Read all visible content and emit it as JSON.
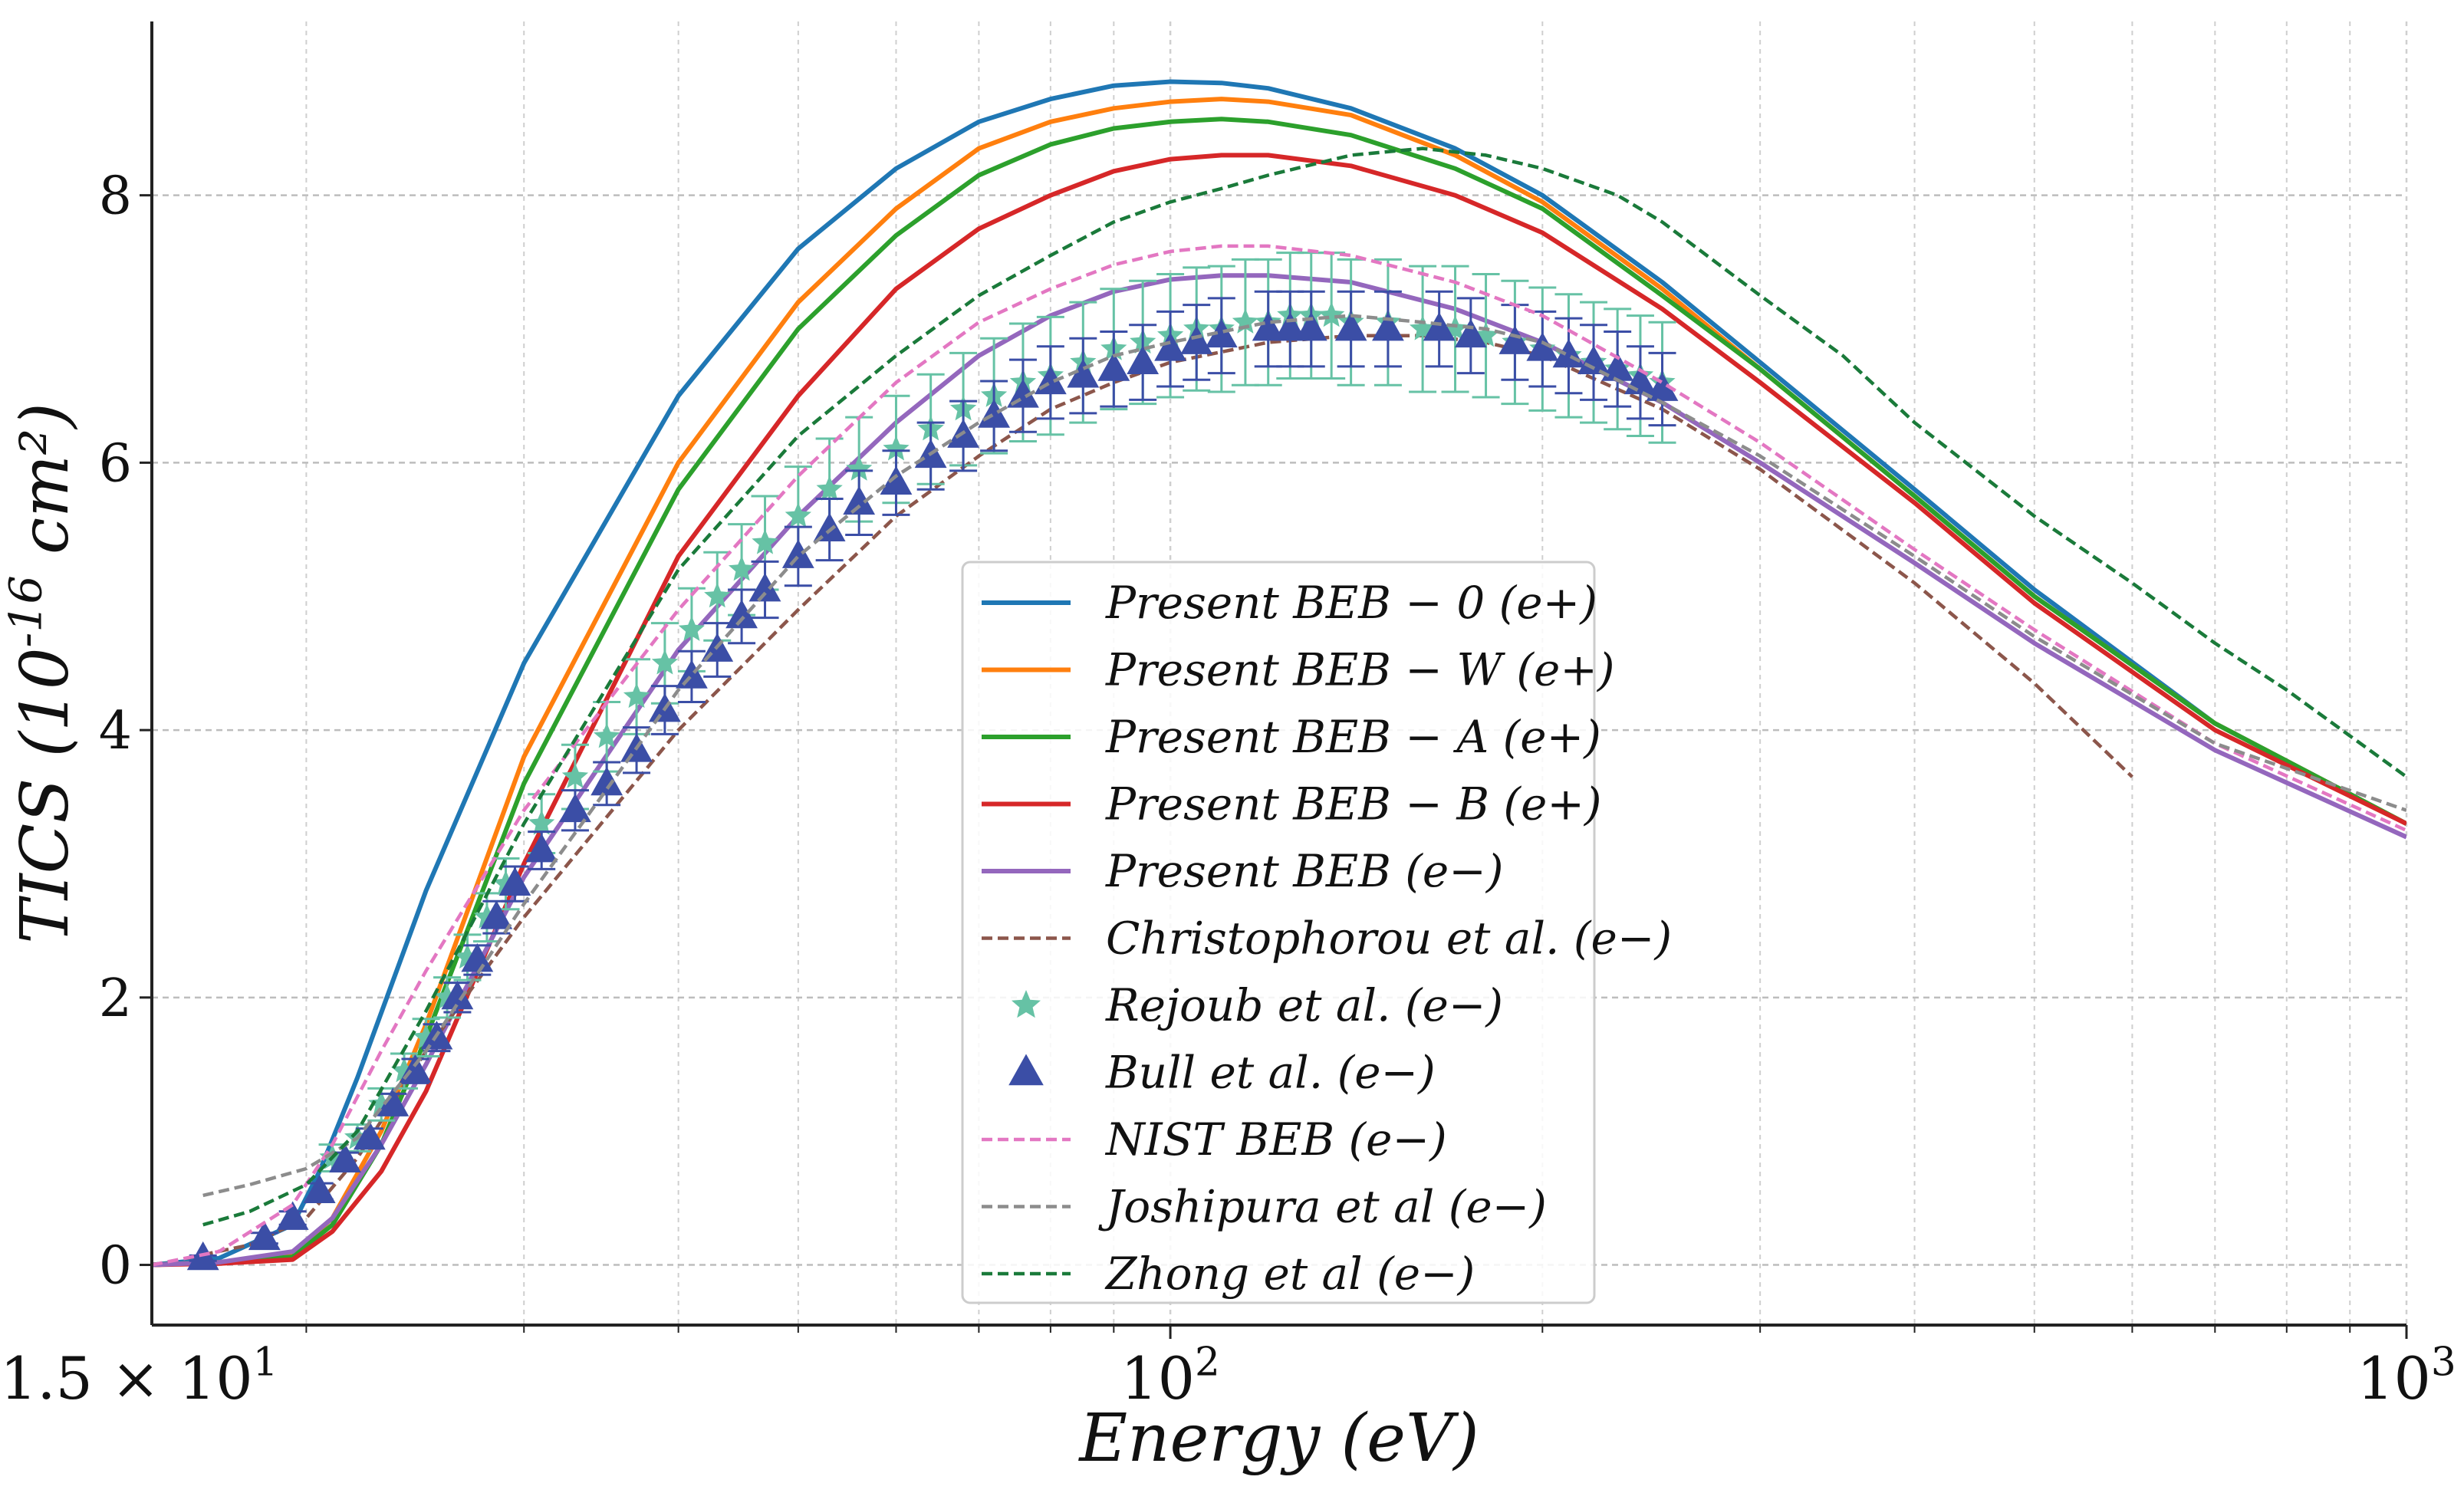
{
  "chart_data": {
    "type": "line",
    "title": "",
    "xlabel": "Energy (eV)",
    "ylabel": "TICS (10^-16 cm^2)",
    "xscale": "log",
    "xlim": [
      15,
      1000
    ],
    "ylim": [
      -0.45,
      9.3
    ],
    "grid": true,
    "legend_position": "center",
    "x_ticks": [
      {
        "value": 15,
        "label": "1.5 × 10^1"
      },
      {
        "value": 100,
        "label": "10^2"
      },
      {
        "value": 1000,
        "label": "10^3"
      }
    ],
    "y_ticks": [
      {
        "value": 0,
        "label": "0"
      },
      {
        "value": 2,
        "label": "2"
      },
      {
        "value": 4,
        "label": "4"
      },
      {
        "value": 6,
        "label": "6"
      },
      {
        "value": 8,
        "label": "8"
      }
    ],
    "series": [
      {
        "name": "Present BEB − 0 (e+)",
        "style": "solid",
        "marker": "none",
        "color": "#1f77b4",
        "x": [
          15,
          17,
          19.5,
          20.5,
          22,
          25,
          30,
          40,
          50,
          60,
          70,
          80,
          90,
          100,
          110,
          120,
          140,
          170,
          200,
          250,
          300,
          400,
          500,
          700,
          1000
        ],
        "y": [
          0,
          0.05,
          0.3,
          0.7,
          1.4,
          2.8,
          4.5,
          6.5,
          7.6,
          8.2,
          8.55,
          8.72,
          8.82,
          8.85,
          8.84,
          8.8,
          8.65,
          8.35,
          8.0,
          7.35,
          6.75,
          5.8,
          5.05,
          4.05,
          3.3
        ]
      },
      {
        "name": "Present BEB − W (e+)",
        "style": "solid",
        "marker": "none",
        "color": "#ff7f0e",
        "x": [
          15,
          17,
          19.5,
          21,
          23,
          25,
          30,
          40,
          50,
          60,
          70,
          80,
          90,
          100,
          110,
          120,
          140,
          170,
          200,
          250,
          300,
          400,
          500,
          700,
          1000
        ],
        "y": [
          0,
          0.02,
          0.08,
          0.35,
          1.0,
          1.8,
          3.8,
          6.0,
          7.2,
          7.9,
          8.35,
          8.55,
          8.65,
          8.7,
          8.72,
          8.7,
          8.6,
          8.3,
          7.95,
          7.3,
          6.7,
          5.75,
          5.0,
          4.05,
          3.3
        ]
      },
      {
        "name": "Present BEB − A (e+)",
        "style": "solid",
        "marker": "none",
        "color": "#2ca02c",
        "x": [
          15,
          17,
          19.5,
          21,
          23,
          25,
          30,
          40,
          50,
          60,
          70,
          80,
          90,
          100,
          110,
          120,
          140,
          170,
          200,
          250,
          300,
          400,
          500,
          700,
          1000
        ],
        "y": [
          0,
          0.02,
          0.06,
          0.3,
          0.9,
          1.7,
          3.6,
          5.8,
          7.0,
          7.7,
          8.15,
          8.38,
          8.5,
          8.55,
          8.57,
          8.55,
          8.45,
          8.2,
          7.9,
          7.25,
          6.7,
          5.75,
          5.0,
          4.05,
          3.3
        ]
      },
      {
        "name": "Present BEB − B (e+)",
        "style": "solid",
        "marker": "none",
        "color": "#d62728",
        "x": [
          15,
          17,
          19.5,
          21,
          23,
          25,
          30,
          40,
          50,
          60,
          70,
          80,
          90,
          100,
          110,
          120,
          140,
          170,
          200,
          250,
          300,
          400,
          500,
          700,
          1000
        ],
        "y": [
          0,
          0.01,
          0.04,
          0.25,
          0.7,
          1.3,
          3.0,
          5.3,
          6.5,
          7.3,
          7.75,
          8.0,
          8.18,
          8.27,
          8.3,
          8.3,
          8.22,
          8.0,
          7.72,
          7.15,
          6.6,
          5.7,
          4.95,
          4.0,
          3.3
        ]
      },
      {
        "name": "Present BEB (e−)",
        "style": "solid",
        "marker": "none",
        "color": "#9467bd",
        "x": [
          15,
          17,
          19.5,
          21,
          23,
          25,
          30,
          40,
          50,
          60,
          70,
          80,
          90,
          100,
          110,
          120,
          140,
          170,
          200,
          250,
          300,
          400,
          500,
          700,
          1000
        ],
        "y": [
          0,
          0.02,
          0.1,
          0.35,
          0.9,
          1.5,
          2.9,
          4.6,
          5.6,
          6.3,
          6.8,
          7.1,
          7.28,
          7.37,
          7.4,
          7.4,
          7.35,
          7.15,
          6.9,
          6.45,
          6.0,
          5.25,
          4.65,
          3.85,
          3.2
        ]
      },
      {
        "name": "Christophorou et al. (e−)",
        "style": "dashed",
        "marker": "none",
        "color": "#8c564b",
        "x": [
          16,
          18,
          20,
          22,
          25,
          30,
          40,
          50,
          60,
          70,
          80,
          90,
          100,
          120,
          140,
          160,
          180,
          200,
          250,
          300,
          400,
          500,
          600
        ],
        "y": [
          0.05,
          0.15,
          0.35,
          0.8,
          1.6,
          2.6,
          4.0,
          4.9,
          5.6,
          6.05,
          6.4,
          6.6,
          6.75,
          6.9,
          6.95,
          6.95,
          6.9,
          6.8,
          6.4,
          5.95,
          5.1,
          4.35,
          3.65
        ]
      },
      {
        "name": "Rejoub et al. (e−)",
        "style": "errorbar",
        "marker": "star",
        "color": "#66c2a5",
        "x": [
          21,
          22,
          23,
          24,
          25,
          26,
          27,
          28,
          29,
          31,
          33,
          35,
          37,
          39,
          41,
          43,
          45,
          47,
          50,
          53,
          56,
          60,
          64,
          68,
          72,
          76,
          80,
          85,
          90,
          95,
          100,
          105,
          110,
          115,
          120,
          125,
          130,
          135,
          140,
          150,
          160,
          170,
          180,
          190,
          200,
          210,
          220,
          230,
          240,
          250
        ],
        "y": [
          0.8,
          0.95,
          1.2,
          1.45,
          1.7,
          2.0,
          2.3,
          2.6,
          2.85,
          3.3,
          3.65,
          3.95,
          4.25,
          4.5,
          4.75,
          5.0,
          5.2,
          5.4,
          5.6,
          5.8,
          5.95,
          6.1,
          6.25,
          6.4,
          6.5,
          6.6,
          6.65,
          6.75,
          6.85,
          6.9,
          6.95,
          7.0,
          7.0,
          7.05,
          7.05,
          7.1,
          7.1,
          7.1,
          7.05,
          7.05,
          7.0,
          7.0,
          6.95,
          6.9,
          6.85,
          6.8,
          6.75,
          6.7,
          6.65,
          6.6
        ],
        "yerr": [
          0.1,
          0.1,
          0.12,
          0.13,
          0.14,
          0.15,
          0.17,
          0.18,
          0.19,
          0.22,
          0.24,
          0.26,
          0.28,
          0.3,
          0.31,
          0.33,
          0.34,
          0.35,
          0.37,
          0.38,
          0.39,
          0.4,
          0.41,
          0.42,
          0.43,
          0.44,
          0.44,
          0.45,
          0.45,
          0.46,
          0.46,
          0.46,
          0.47,
          0.47,
          0.47,
          0.47,
          0.47,
          0.47,
          0.47,
          0.47,
          0.47,
          0.47,
          0.46,
          0.46,
          0.46,
          0.46,
          0.45,
          0.45,
          0.45,
          0.45
        ]
      },
      {
        "name": "Bull et al. (e−)",
        "style": "errorbar",
        "marker": "triangle",
        "color": "#3b4ea6",
        "x": [
          16.5,
          18.5,
          19.5,
          20.5,
          21.5,
          22.5,
          23.5,
          24.5,
          25.5,
          26.5,
          27.5,
          28.5,
          29.5,
          31,
          33,
          35,
          37,
          39,
          41,
          43,
          45,
          47,
          50,
          53,
          56,
          60,
          64,
          68,
          72,
          76,
          80,
          85,
          90,
          95,
          100,
          105,
          110,
          120,
          125,
          130,
          140,
          150,
          165,
          175,
          190,
          200,
          210,
          220,
          230,
          240,
          250
        ],
        "y": [
          0.05,
          0.2,
          0.35,
          0.55,
          0.78,
          0.95,
          1.2,
          1.45,
          1.7,
          2.0,
          2.28,
          2.6,
          2.85,
          3.1,
          3.4,
          3.6,
          3.85,
          4.15,
          4.4,
          4.6,
          4.85,
          5.05,
          5.3,
          5.5,
          5.7,
          5.85,
          6.05,
          6.2,
          6.35,
          6.5,
          6.6,
          6.65,
          6.7,
          6.75,
          6.85,
          6.9,
          6.95,
          7.0,
          7.0,
          7.0,
          7.0,
          7.0,
          7.0,
          6.95,
          6.9,
          6.85,
          6.8,
          6.75,
          6.7,
          6.6,
          6.55
        ],
        "yerr": [
          0.02,
          0.04,
          0.05,
          0.06,
          0.06,
          0.07,
          0.08,
          0.09,
          0.1,
          0.11,
          0.11,
          0.12,
          0.13,
          0.14,
          0.15,
          0.16,
          0.17,
          0.18,
          0.19,
          0.2,
          0.2,
          0.21,
          0.22,
          0.23,
          0.24,
          0.24,
          0.25,
          0.26,
          0.26,
          0.27,
          0.27,
          0.28,
          0.28,
          0.28,
          0.28,
          0.28,
          0.28,
          0.28,
          0.28,
          0.28,
          0.28,
          0.28,
          0.28,
          0.28,
          0.28,
          0.28,
          0.28,
          0.28,
          0.28,
          0.27,
          0.27
        ]
      },
      {
        "name": "NIST BEB (e−)",
        "style": "dashed",
        "marker": "none",
        "color": "#e377c2",
        "x": [
          15,
          17,
          19.5,
          21,
          23,
          25,
          30,
          40,
          50,
          60,
          70,
          80,
          90,
          100,
          110,
          120,
          140,
          170,
          200,
          250,
          300,
          400,
          500,
          700,
          1000
        ],
        "y": [
          0,
          0.1,
          0.45,
          0.9,
          1.6,
          2.2,
          3.4,
          4.9,
          5.9,
          6.6,
          7.05,
          7.3,
          7.48,
          7.58,
          7.62,
          7.62,
          7.55,
          7.35,
          7.1,
          6.6,
          6.15,
          5.35,
          4.75,
          3.9,
          3.25
        ]
      },
      {
        "name": "Joshipura et al (e−)",
        "style": "dashed",
        "marker": "none",
        "color": "#8c8c8c",
        "x": [
          16.5,
          18,
          20,
          22,
          25,
          30,
          40,
          50,
          60,
          70,
          80,
          90,
          100,
          120,
          140,
          160,
          180,
          200,
          250,
          300,
          400,
          500,
          700,
          1000
        ],
        "y": [
          0.52,
          0.6,
          0.72,
          0.95,
          1.6,
          2.7,
          4.3,
          5.3,
          5.9,
          6.3,
          6.6,
          6.8,
          6.9,
          7.05,
          7.1,
          7.05,
          7.0,
          6.9,
          6.45,
          6.05,
          5.3,
          4.7,
          3.9,
          3.4
        ]
      },
      {
        "name": "Zhong et al (e−)",
        "style": "dashed",
        "marker": "none",
        "color": "#1a7a3a",
        "x": [
          16.5,
          18,
          20,
          22,
          25,
          30,
          40,
          50,
          60,
          70,
          80,
          90,
          100,
          110,
          120,
          140,
          160,
          180,
          200,
          230,
          250,
          300,
          350,
          400,
          500,
          600,
          700,
          800,
          1000
        ],
        "y": [
          0.3,
          0.4,
          0.6,
          1.0,
          1.9,
          3.3,
          5.2,
          6.2,
          6.8,
          7.25,
          7.55,
          7.8,
          7.95,
          8.05,
          8.15,
          8.3,
          8.35,
          8.3,
          8.2,
          8.0,
          7.8,
          7.25,
          6.8,
          6.3,
          5.6,
          5.1,
          4.65,
          4.3,
          3.65
        ]
      }
    ]
  }
}
